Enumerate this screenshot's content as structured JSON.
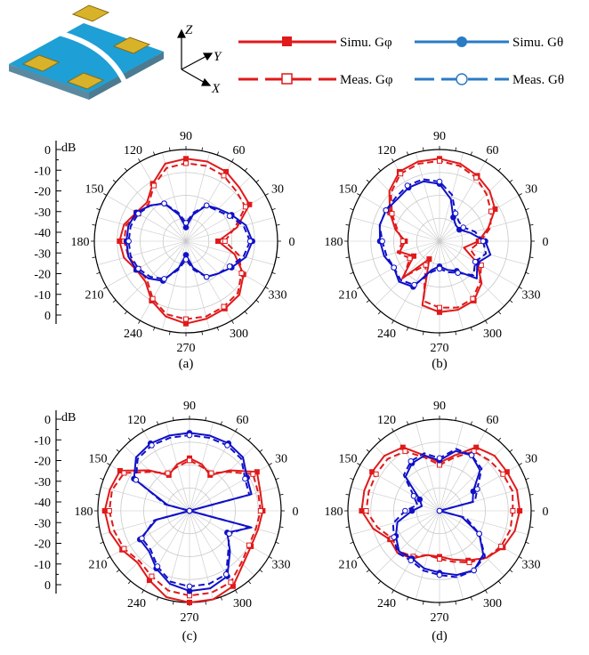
{
  "colors": {
    "phi": "#e0191a",
    "theta": "#1010c8",
    "legend_theta": "#2a7bc4",
    "grid": "#c8c8c8"
  },
  "legend": {
    "simu_phi": "Simu. Gφ",
    "simu_theta": "Simu. Gθ",
    "meas_phi": "Meas. Gφ",
    "meas_theta": "Meas. Gθ"
  },
  "axes3d": {
    "z": "Z",
    "y": "Y",
    "x": "X"
  },
  "db_unit": "dB",
  "db_ticks": [
    "0",
    "-10",
    "-20",
    "-30",
    "-40",
    "-30",
    "-20",
    "-10",
    "0"
  ],
  "angle_ticks": [
    "0",
    "30",
    "60",
    "90",
    "120",
    "150",
    "180",
    "210",
    "240",
    "270",
    "300",
    "330"
  ],
  "chart_data": [
    {
      "type": "polar-line",
      "caption": "(a)",
      "r_range_db": [
        -40,
        0
      ],
      "angles_deg": [
        0,
        15,
        30,
        45,
        60,
        75,
        90,
        105,
        120,
        135,
        150,
        165,
        180,
        195,
        210,
        225,
        240,
        255,
        270,
        285,
        300,
        315,
        330,
        345
      ],
      "series": [
        {
          "name": "Simu. Gφ",
          "values": [
            -26,
            -17,
            -8,
            -7,
            -5,
            -4,
            -4,
            -5,
            -11,
            -16,
            -15,
            -12,
            -11,
            -12,
            -15,
            -15,
            -10,
            -6,
            -4,
            -5,
            -6,
            -7,
            -11,
            -18
          ]
        },
        {
          "name": "Meas. Gφ",
          "values": [
            -23,
            -18,
            -10,
            -9,
            -7,
            -6,
            -6,
            -7,
            -12,
            -17,
            -16,
            -13,
            -13,
            -14,
            -16,
            -16,
            -11,
            -7,
            -6,
            -6,
            -7,
            -8,
            -12,
            -16
          ]
        },
        {
          "name": "Simu. Gθ",
          "values": [
            -11,
            -13,
            -17,
            -20,
            -22,
            -28,
            -34,
            -28,
            -21,
            -18,
            -15,
            -14,
            -14,
            -14,
            -15,
            -17,
            -20,
            -28,
            -34,
            -28,
            -22,
            -20,
            -17,
            -13
          ]
        },
        {
          "name": "Meas. Gθ",
          "values": [
            -12,
            -14,
            -18,
            -21,
            -22,
            -27,
            -32,
            -27,
            -21,
            -18,
            -16,
            -15,
            -15,
            -15,
            -16,
            -18,
            -21,
            -27,
            -32,
            -27,
            -22,
            -20,
            -18,
            -14
          ]
        }
      ]
    },
    {
      "type": "polar-line",
      "caption": "(b)",
      "r_range_db": [
        -40,
        0
      ],
      "angles_deg": [
        0,
        15,
        30,
        45,
        60,
        75,
        90,
        105,
        120,
        135,
        150,
        165,
        180,
        195,
        210,
        225,
        240,
        255,
        270,
        285,
        300,
        315,
        330,
        345
      ],
      "series": [
        {
          "name": "Simu. Gφ",
          "values": [
            -23,
            -18,
            -12,
            -9,
            -7,
            -5,
            -4,
            -4,
            -5,
            -9,
            -15,
            -20,
            -25,
            -22,
            -27,
            -17,
            -31,
            -11,
            -9,
            -9,
            -10,
            -14,
            -21,
            -29
          ]
        },
        {
          "name": "Meas. Gφ",
          "values": [
            -22,
            -17,
            -14,
            -11,
            -8,
            -6,
            -5,
            -5,
            -6,
            -10,
            -16,
            -21,
            -24,
            -21,
            -25,
            -18,
            -28,
            -13,
            -11,
            -10,
            -11,
            -15,
            -19,
            -26
          ]
        },
        {
          "name": "Simu. Gθ",
          "values": [
            -20,
            -26,
            -30,
            -30,
            -28,
            -21,
            -15,
            -13,
            -13,
            -14,
            -13,
            -13,
            -14,
            -15,
            -17,
            -15,
            -17,
            -27,
            -29,
            -27,
            -25,
            -17,
            -21,
            -17
          ]
        },
        {
          "name": "Meas. Gθ",
          "values": [
            -21,
            -24,
            -28,
            -28,
            -26,
            -19,
            -14,
            -12,
            -12,
            -13,
            -13,
            -13,
            -15,
            -16,
            -17,
            -16,
            -18,
            -26,
            -28,
            -26,
            -24,
            -19,
            -22,
            -19
          ]
        }
      ]
    },
    {
      "type": "polar-line",
      "caption": "(c)",
      "r_range_db": [
        -40,
        0
      ],
      "angles_deg": [
        0,
        15,
        30,
        45,
        60,
        75,
        90,
        105,
        120,
        135,
        150,
        165,
        180,
        195,
        210,
        225,
        240,
        255,
        270,
        285,
        300,
        315,
        330,
        345
      ],
      "series": [
        {
          "name": "Simu. Gφ",
          "values": [
            -8,
            -8,
            -6,
            -15,
            -22,
            -19,
            -17,
            -19,
            -22,
            -15,
            -5,
            -4,
            -3,
            -4,
            -6,
            -8,
            -5,
            -1,
            0,
            0,
            -2,
            -7,
            -9,
            -9
          ]
        },
        {
          "name": "Meas. Gφ",
          "values": [
            -9,
            -9,
            -8,
            -16,
            -21,
            -20,
            -18,
            -20,
            -21,
            -16,
            -7,
            -5,
            -5,
            -6,
            -7,
            -9,
            -7,
            -4,
            -3,
            -3,
            -4,
            -8,
            -10,
            -10
          ]
        },
        {
          "name": "Simu. Gθ",
          "values": [
            -40,
            -12,
            -11,
            -7,
            -6,
            -6,
            -6,
            -6,
            -6,
            -7,
            -12,
            -30,
            -40,
            -25,
            -15,
            -15,
            -11,
            -7,
            -5,
            -5,
            -7,
            -15,
            -21,
            -12
          ]
        },
        {
          "name": "Meas. Gθ",
          "values": [
            -40,
            -13,
            -12,
            -8,
            -7,
            -7,
            -7,
            -7,
            -7,
            -8,
            -13,
            -29,
            -40,
            -24,
            -16,
            -16,
            -12,
            -8,
            -7,
            -7,
            -8,
            -16,
            -20,
            -13
          ]
        }
      ]
    },
    {
      "type": "polar-line",
      "caption": "(d)",
      "r_range_db": [
        -40,
        0
      ],
      "angles_deg": [
        0,
        15,
        30,
        45,
        60,
        75,
        90,
        105,
        120,
        135,
        150,
        165,
        180,
        195,
        210,
        225,
        240,
        255,
        270,
        285,
        300,
        315,
        330,
        345
      ],
      "series": [
        {
          "name": "Simu. Gφ",
          "values": [
            -5,
            -5,
            -6,
            -6,
            -8,
            -15,
            -19,
            -15,
            -8,
            -6,
            -6,
            -6,
            -6,
            -10,
            -15,
            -14,
            -16,
            -20,
            -20,
            -18,
            -15,
            -11,
            -8,
            -6
          ]
        },
        {
          "name": "Meas. Gφ",
          "values": [
            -8,
            -7,
            -8,
            -9,
            -10,
            -16,
            -20,
            -16,
            -10,
            -8,
            -8,
            -8,
            -8,
            -12,
            -16,
            -15,
            -17,
            -20,
            -19,
            -17,
            -14,
            -11,
            -9,
            -8
          ]
        },
        {
          "name": "Simu. Gθ",
          "values": [
            -40,
            -25,
            -23,
            -15,
            -12,
            -13,
            -18,
            -15,
            -16,
            -19,
            -30,
            -32,
            -28,
            -21,
            -18,
            -15,
            -16,
            -14,
            -13,
            -11,
            -10,
            -13,
            -20,
            -30
          ]
        },
        {
          "name": "Meas. Gθ",
          "values": [
            -40,
            -24,
            -21,
            -14,
            -12,
            -12,
            -17,
            -14,
            -15,
            -18,
            -27,
            -30,
            -25,
            -19,
            -17,
            -14,
            -15,
            -13,
            -12,
            -10,
            -10,
            -12,
            -20,
            -28
          ]
        }
      ]
    }
  ]
}
